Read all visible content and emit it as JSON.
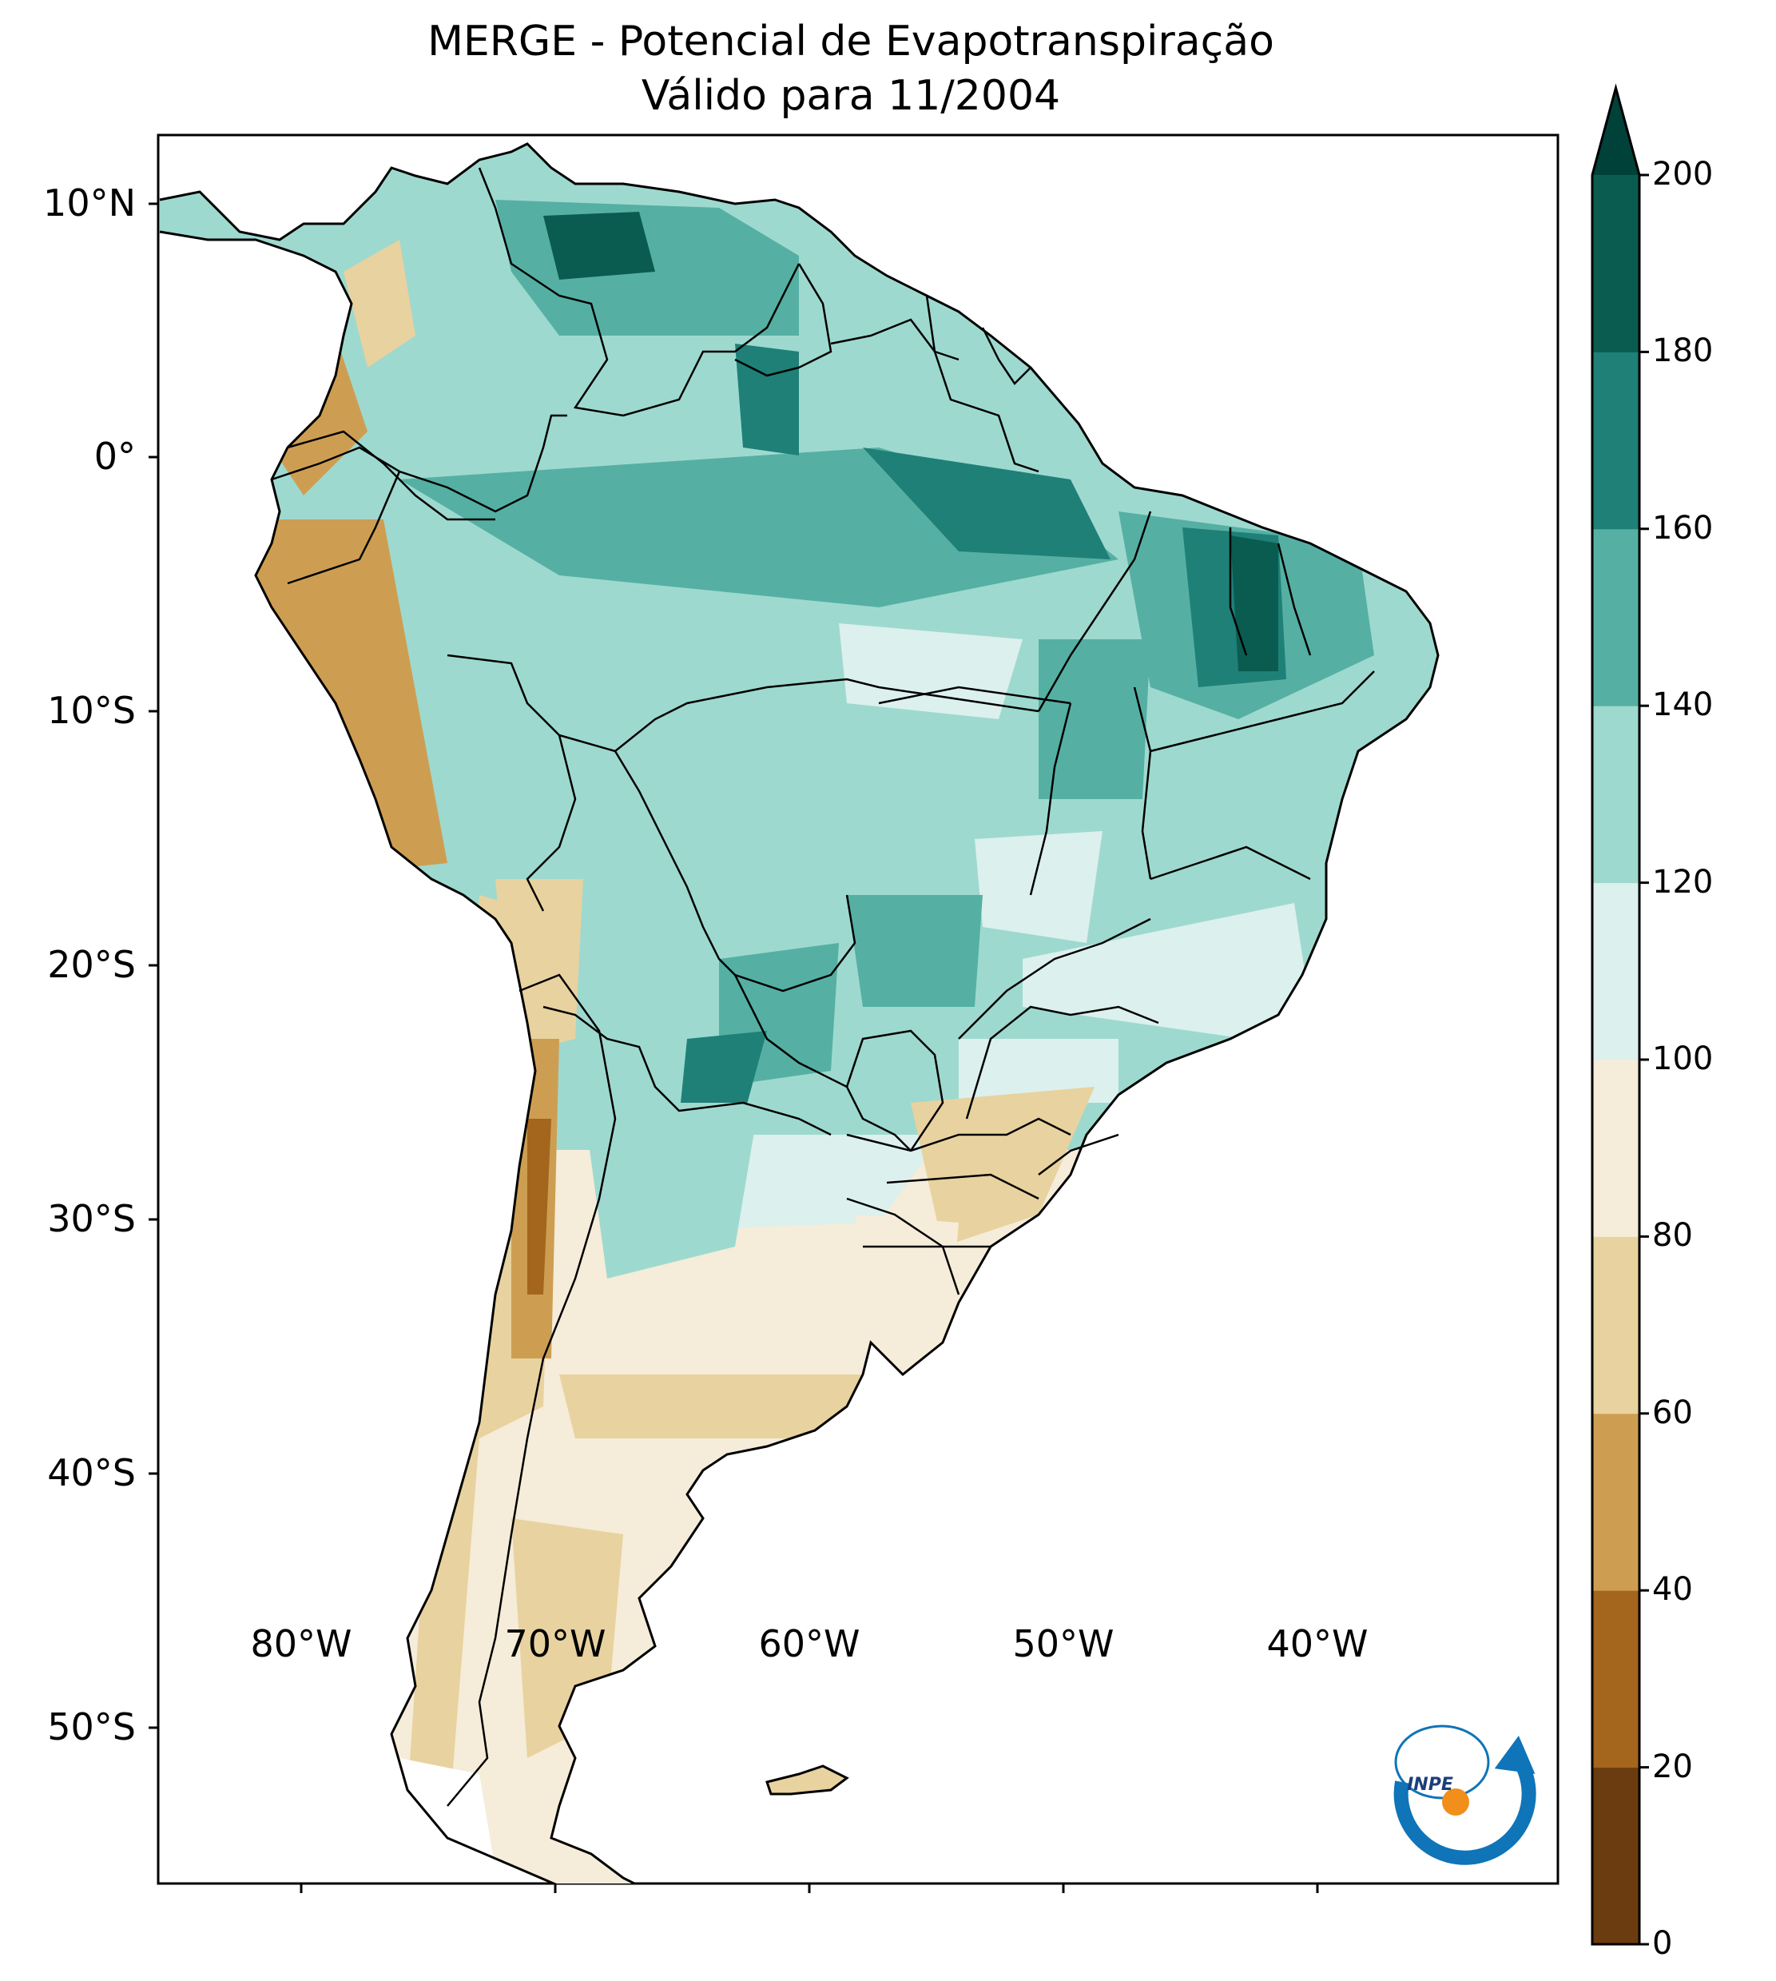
{
  "title": {
    "line1": "MERGE - Potencial de Evapotranspiração",
    "line2": "Válido para 11/2004"
  },
  "map": {
    "region": "South America",
    "lat_labels": [
      "10°N",
      "0°",
      "10°S",
      "20°S",
      "30°S",
      "40°S",
      "50°S"
    ],
    "lon_labels": [
      "80°W",
      "70°W",
      "60°W",
      "50°W",
      "40°W"
    ]
  },
  "colorbar": {
    "ticks": [
      "0",
      "20",
      "40",
      "60",
      "80",
      "100",
      "120",
      "140",
      "160",
      "180",
      "200"
    ],
    "colors": [
      "#6b3c0f",
      "#a4651d",
      "#cd9e52",
      "#e8d29f",
      "#f5ecd9",
      "#dcf0ed",
      "#9ed9cf",
      "#55b0a3",
      "#1f8078",
      "#0b5c50",
      "#004239"
    ],
    "extend": "max"
  },
  "logo": {
    "text": "INPE"
  }
}
